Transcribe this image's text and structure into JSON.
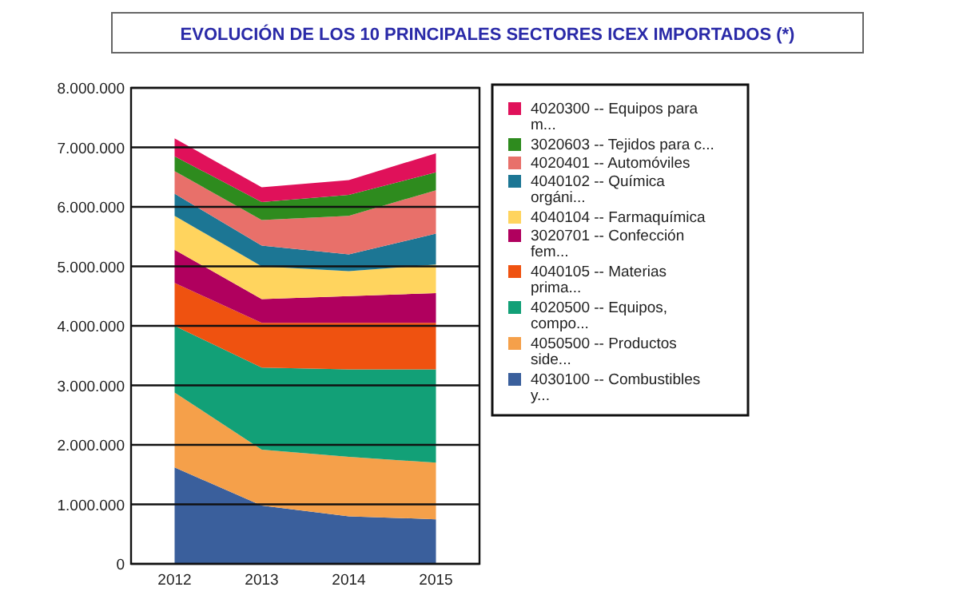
{
  "chart_data": {
    "type": "area",
    "stacked": true,
    "title": "EVOLUCIÓN DE LOS 10 PRINCIPALES SECTORES ICEX IMPORTADOS (*)",
    "categories": [
      "2012",
      "2013",
      "2014",
      "2015"
    ],
    "ylim": [
      0,
      8000000
    ],
    "yticks": [
      {
        "value": 0,
        "label": "0"
      },
      {
        "value": 1000000,
        "label": "1.000.000"
      },
      {
        "value": 2000000,
        "label": "2.000.000"
      },
      {
        "value": 3000000,
        "label": "3.000.000"
      },
      {
        "value": 4000000,
        "label": "4.000.000"
      },
      {
        "value": 5000000,
        "label": "5.000.000"
      },
      {
        "value": 6000000,
        "label": "6.000.000"
      },
      {
        "value": 7000000,
        "label": "7.000.000"
      },
      {
        "value": 8000000,
        "label": "8.000.000"
      }
    ],
    "grid": "y",
    "legend": "right",
    "series": [
      {
        "name": "4030100 -- Combustibles y...",
        "color": "#3a5f9c",
        "values": [
          1620000,
          980000,
          800000,
          750000
        ]
      },
      {
        "name": "4050500 -- Productos side...",
        "color": "#f5a04a",
        "values": [
          1260000,
          940000,
          1000000,
          950000
        ]
      },
      {
        "name": "4020500 -- Equipos, compo...",
        "color": "#12a077",
        "values": [
          1120000,
          1380000,
          1470000,
          1570000
        ]
      },
      {
        "name": "4040105 -- Materias prima...",
        "color": "#ef5210",
        "values": [
          720000,
          750000,
          780000,
          780000
        ]
      },
      {
        "name": "3020701 -- Confección fem...",
        "color": "#b0005e",
        "values": [
          560000,
          400000,
          450000,
          500000
        ]
      },
      {
        "name": "4040104 -- Farmaquímica",
        "color": "#ffd45e",
        "values": [
          570000,
          550000,
          420000,
          480000
        ]
      },
      {
        "name": "4040102 -- Química orgáni...",
        "color": "#1c7694",
        "values": [
          370000,
          350000,
          280000,
          520000
        ]
      },
      {
        "name": "4020401 -- Automóviles",
        "color": "#e8706a",
        "values": [
          380000,
          430000,
          650000,
          730000
        ]
      },
      {
        "name": "3020603 -- Tejidos para c...",
        "color": "#2e8b1e",
        "values": [
          250000,
          300000,
          350000,
          300000
        ]
      },
      {
        "name": "4020300 -- Equipos para m...",
        "color": "#e0115a",
        "values": [
          300000,
          250000,
          250000,
          320000
        ]
      }
    ]
  }
}
